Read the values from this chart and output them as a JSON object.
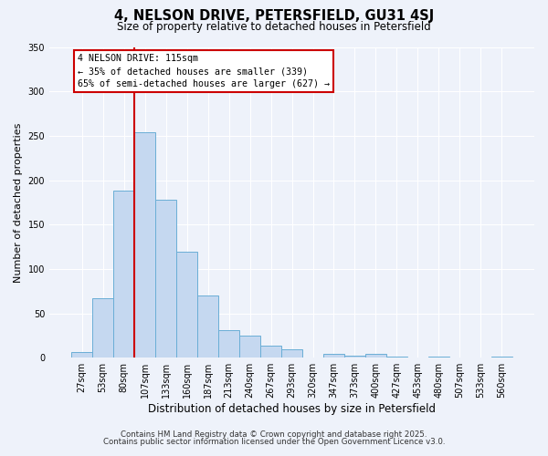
{
  "title": "4, NELSON DRIVE, PETERSFIELD, GU31 4SJ",
  "subtitle": "Size of property relative to detached houses in Petersfield",
  "xlabel": "Distribution of detached houses by size in Petersfield",
  "ylabel": "Number of detached properties",
  "bar_labels": [
    "27sqm",
    "53sqm",
    "80sqm",
    "107sqm",
    "133sqm",
    "160sqm",
    "187sqm",
    "213sqm",
    "240sqm",
    "267sqm",
    "293sqm",
    "320sqm",
    "347sqm",
    "373sqm",
    "400sqm",
    "427sqm",
    "453sqm",
    "480sqm",
    "507sqm",
    "533sqm",
    "560sqm"
  ],
  "bar_values": [
    6,
    67,
    188,
    254,
    178,
    119,
    70,
    31,
    25,
    14,
    9,
    0,
    4,
    2,
    4,
    1,
    0,
    1,
    0,
    0,
    1
  ],
  "bar_color": "#c5d8f0",
  "bar_edge_color": "#6aaed6",
  "background_color": "#eef2fa",
  "ylim": [
    0,
    350
  ],
  "yticks": [
    0,
    50,
    100,
    150,
    200,
    250,
    300,
    350
  ],
  "property_line_x_label": "107sqm",
  "property_line_color": "#cc0000",
  "annotation_title": "4 NELSON DRIVE: 115sqm",
  "annotation_line1": "← 35% of detached houses are smaller (339)",
  "annotation_line2": "65% of semi-detached houses are larger (627) →",
  "footer1": "Contains HM Land Registry data © Crown copyright and database right 2025.",
  "footer2": "Contains public sector information licensed under the Open Government Licence v3.0."
}
